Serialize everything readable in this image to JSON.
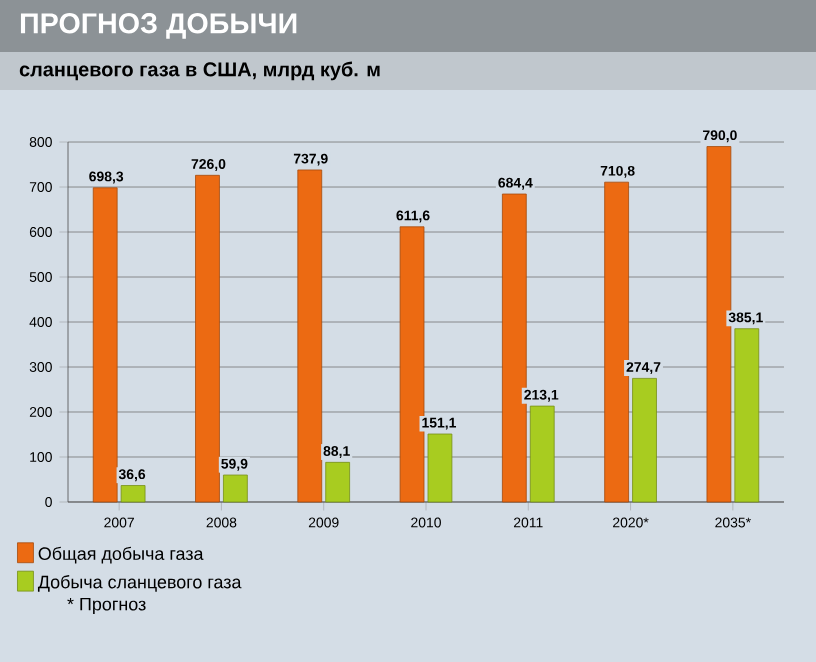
{
  "chart_data": {
    "type": "bar",
    "title": "ПРОГНОЗ ДОБЫЧИ",
    "subtitle": "сланцевого газа в США, млрд куб. м",
    "categories": [
      "2007",
      "2008",
      "2009",
      "2010",
      "2011",
      "2020*",
      "2035*"
    ],
    "series": [
      {
        "name": "Общая добыча газа",
        "color": "#ec6a12",
        "values": [
          698.3,
          726.0,
          737.9,
          611.6,
          684.4,
          710.8,
          790.0
        ],
        "value_labels": [
          "698,3",
          "726,0",
          "737,9",
          "611,6",
          "684,4",
          "710,8",
          "790,0"
        ]
      },
      {
        "name": "Добыча сланцевого газа",
        "color": "#a8cc20",
        "values": [
          36.6,
          59.9,
          88.1,
          151.1,
          213.1,
          274.7,
          385.1
        ],
        "value_labels": [
          "36,6",
          "59,9",
          "88,1",
          "151,1",
          "213,1",
          "274,7",
          "385,1"
        ]
      }
    ],
    "ylim": [
      0,
      800
    ],
    "yticks": [
      0,
      100,
      200,
      300,
      400,
      500,
      600,
      700,
      800
    ],
    "grid": "y",
    "legend": "bottom left",
    "annotations": [
      "* Прогноз"
    ]
  }
}
